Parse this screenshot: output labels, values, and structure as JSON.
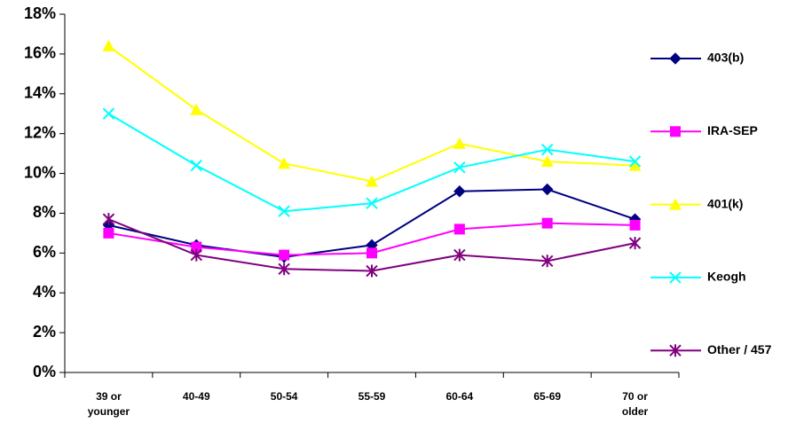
{
  "chart_data": {
    "type": "line",
    "categories": [
      "39 or younger",
      "40-49",
      "50-54",
      "55-59",
      "60-64",
      "65-69",
      "70 or older"
    ],
    "series": [
      {
        "name": "403(b)",
        "color": "#000080",
        "marker": "diamond",
        "values": [
          7.4,
          6.4,
          5.8,
          6.4,
          9.1,
          9.2,
          7.7
        ]
      },
      {
        "name": "IRA-SEP",
        "color": "#ff00ff",
        "marker": "square",
        "values": [
          7.0,
          6.3,
          5.9,
          6.0,
          7.2,
          7.5,
          7.4
        ]
      },
      {
        "name": "401(k)",
        "color": "#ffff00",
        "marker": "triangle",
        "values": [
          16.4,
          13.2,
          10.5,
          9.6,
          11.5,
          10.6,
          10.4
        ]
      },
      {
        "name": "Keogh",
        "color": "#00ffff",
        "marker": "x",
        "values": [
          13.0,
          10.4,
          8.1,
          8.5,
          10.3,
          11.2,
          10.6
        ]
      },
      {
        "name": "Other / 457",
        "color": "#800080",
        "marker": "asterisk",
        "values": [
          7.7,
          5.9,
          5.2,
          5.1,
          5.9,
          5.6,
          6.5
        ]
      }
    ],
    "ylim": [
      0,
      18
    ],
    "yticks": [
      {
        "value": 0,
        "label": "0%"
      },
      {
        "value": 2,
        "label": "2%"
      },
      {
        "value": 4,
        "label": "4%"
      },
      {
        "value": 6,
        "label": "6%"
      },
      {
        "value": 8,
        "label": "8%"
      },
      {
        "value": 10,
        "label": "10%"
      },
      {
        "value": 12,
        "label": "12%"
      },
      {
        "value": 14,
        "label": "14%"
      },
      {
        "value": 16,
        "label": "16%"
      },
      {
        "value": 18,
        "label": "18%"
      }
    ],
    "grid": false,
    "legend": "right"
  }
}
